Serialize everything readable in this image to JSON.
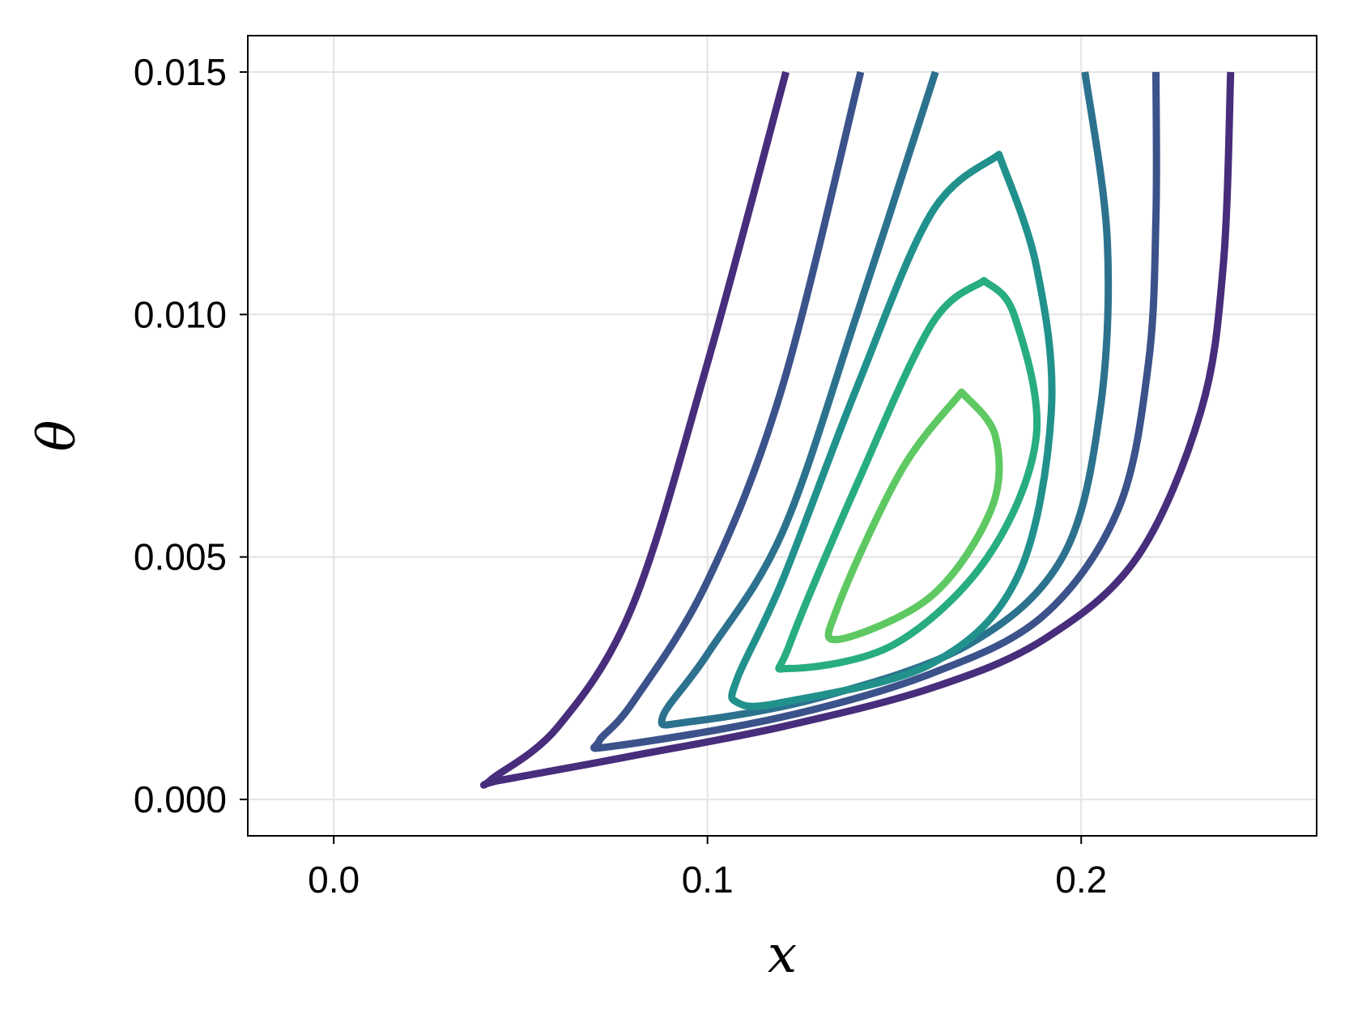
{
  "chart_data": {
    "type": "contour",
    "title": "",
    "xlabel": "x",
    "ylabel": "θ",
    "xlim": [
      -0.023,
      0.263
    ],
    "ylim": [
      -0.00075,
      0.01575
    ],
    "x_ticks": [
      0.0,
      0.1,
      0.2
    ],
    "x_tick_labels": [
      "0.0",
      "0.1",
      "0.2"
    ],
    "y_ticks": [
      0.0,
      0.005,
      0.01,
      0.015
    ],
    "y_tick_labels": [
      "0.000",
      "0.005",
      "0.010",
      "0.015"
    ],
    "grid": true,
    "colormap": "viridis",
    "contours": [
      {
        "level": 1,
        "color": "#472d7b",
        "closed": false,
        "points": [
          [
            0.121,
            0.015
          ],
          [
            0.1,
            0.009
          ],
          [
            0.08,
            0.004
          ],
          [
            0.06,
            0.0015
          ],
          [
            0.042,
            0.0004
          ],
          [
            0.045,
            0.0004
          ],
          [
            0.08,
            0.0009
          ],
          [
            0.12,
            0.0015
          ],
          [
            0.16,
            0.0023
          ],
          [
            0.19,
            0.0033
          ],
          [
            0.215,
            0.005
          ],
          [
            0.232,
            0.008
          ],
          [
            0.238,
            0.011
          ],
          [
            0.24,
            0.015
          ]
        ]
      },
      {
        "level": 2,
        "color": "#3b528b",
        "closed": false,
        "points": [
          [
            0.141,
            0.015
          ],
          [
            0.12,
            0.0085
          ],
          [
            0.1,
            0.0045
          ],
          [
            0.08,
            0.002
          ],
          [
            0.071,
            0.0012
          ],
          [
            0.075,
            0.0011
          ],
          [
            0.12,
            0.0017
          ],
          [
            0.16,
            0.0026
          ],
          [
            0.19,
            0.0038
          ],
          [
            0.21,
            0.006
          ],
          [
            0.218,
            0.009
          ],
          [
            0.22,
            0.012
          ],
          [
            0.22,
            0.015
          ]
        ]
      },
      {
        "level": 3,
        "color": "#2c728e",
        "closed": false,
        "points": [
          [
            0.161,
            0.015
          ],
          [
            0.14,
            0.01
          ],
          [
            0.12,
            0.0055
          ],
          [
            0.1,
            0.003
          ],
          [
            0.088,
            0.0017
          ],
          [
            0.095,
            0.0016
          ],
          [
            0.13,
            0.0021
          ],
          [
            0.17,
            0.0032
          ],
          [
            0.195,
            0.005
          ],
          [
            0.205,
            0.008
          ],
          [
            0.207,
            0.0115
          ],
          [
            0.201,
            0.015
          ]
        ]
      },
      {
        "level": 4,
        "color": "#21918c",
        "closed": true,
        "points": [
          [
            0.178,
            0.0133
          ],
          [
            0.16,
            0.0121
          ],
          [
            0.14,
            0.0085
          ],
          [
            0.12,
            0.0045
          ],
          [
            0.108,
            0.0025
          ],
          [
            0.108,
            0.002
          ],
          [
            0.12,
            0.002
          ],
          [
            0.16,
            0.0028
          ],
          [
            0.183,
            0.0046
          ],
          [
            0.192,
            0.008
          ],
          [
            0.188,
            0.011
          ],
          [
            0.178,
            0.0133
          ]
        ]
      },
      {
        "level": 5,
        "color": "#27ad81",
        "closed": true,
        "points": [
          [
            0.174,
            0.0107
          ],
          [
            0.16,
            0.0098
          ],
          [
            0.14,
            0.0065
          ],
          [
            0.122,
            0.0032
          ],
          [
            0.122,
            0.0027
          ],
          [
            0.15,
            0.0032
          ],
          [
            0.175,
            0.005
          ],
          [
            0.188,
            0.0075
          ],
          [
            0.182,
            0.01
          ],
          [
            0.174,
            0.0107
          ]
        ]
      },
      {
        "level": 6,
        "color": "#5ec962",
        "closed": true,
        "points": [
          [
            0.168,
            0.0084
          ],
          [
            0.152,
            0.0068
          ],
          [
            0.135,
            0.004
          ],
          [
            0.135,
            0.0033
          ],
          [
            0.16,
            0.0042
          ],
          [
            0.176,
            0.006
          ],
          [
            0.177,
            0.0075
          ],
          [
            0.168,
            0.0084
          ]
        ]
      }
    ]
  }
}
